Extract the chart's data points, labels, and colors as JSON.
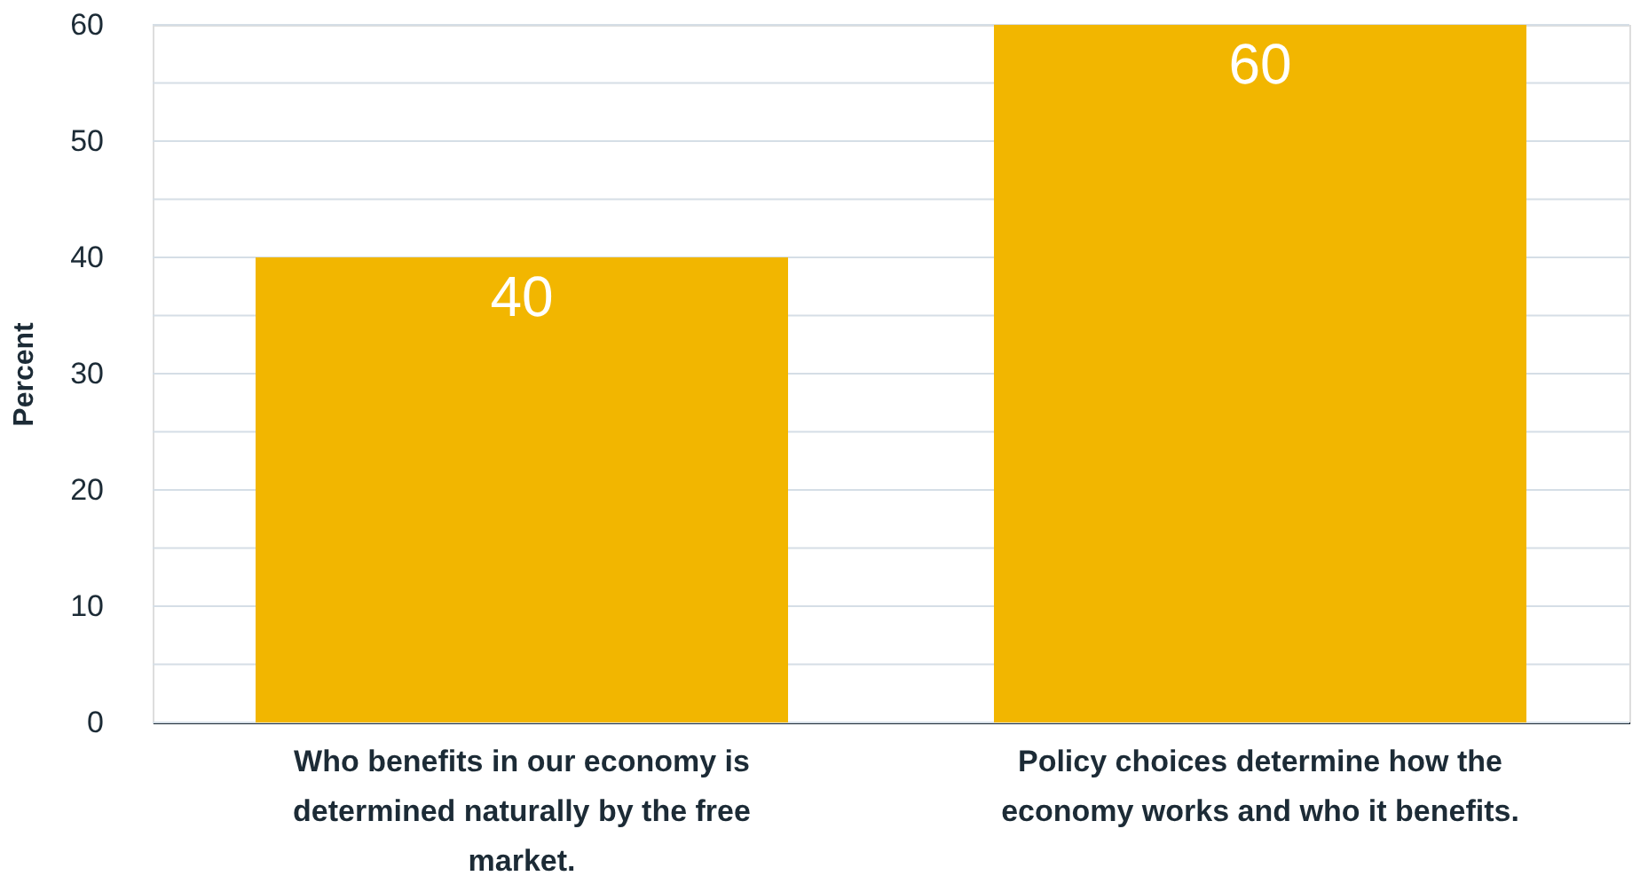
{
  "chart_data": {
    "type": "bar",
    "categories": [
      "Who benefits in our economy is determined naturally by the free market.",
      "Policy choices determine how the economy works and who it benefits."
    ],
    "values": [
      40,
      60
    ],
    "color": "#f2b600",
    "ylabel": "Percent",
    "ylim": [
      0,
      60
    ],
    "yticks": [
      0,
      {
        "value": 5,
        "label": null
      },
      10,
      {
        "value": 15,
        "label": null
      },
      20,
      {
        "value": 25,
        "label": null
      },
      30,
      {
        "value": 35,
        "label": null
      },
      40,
      {
        "value": 45,
        "label": null
      },
      50,
      {
        "value": 55,
        "label": null
      },
      60
    ],
    "grid": "y",
    "data_labels": true
  }
}
